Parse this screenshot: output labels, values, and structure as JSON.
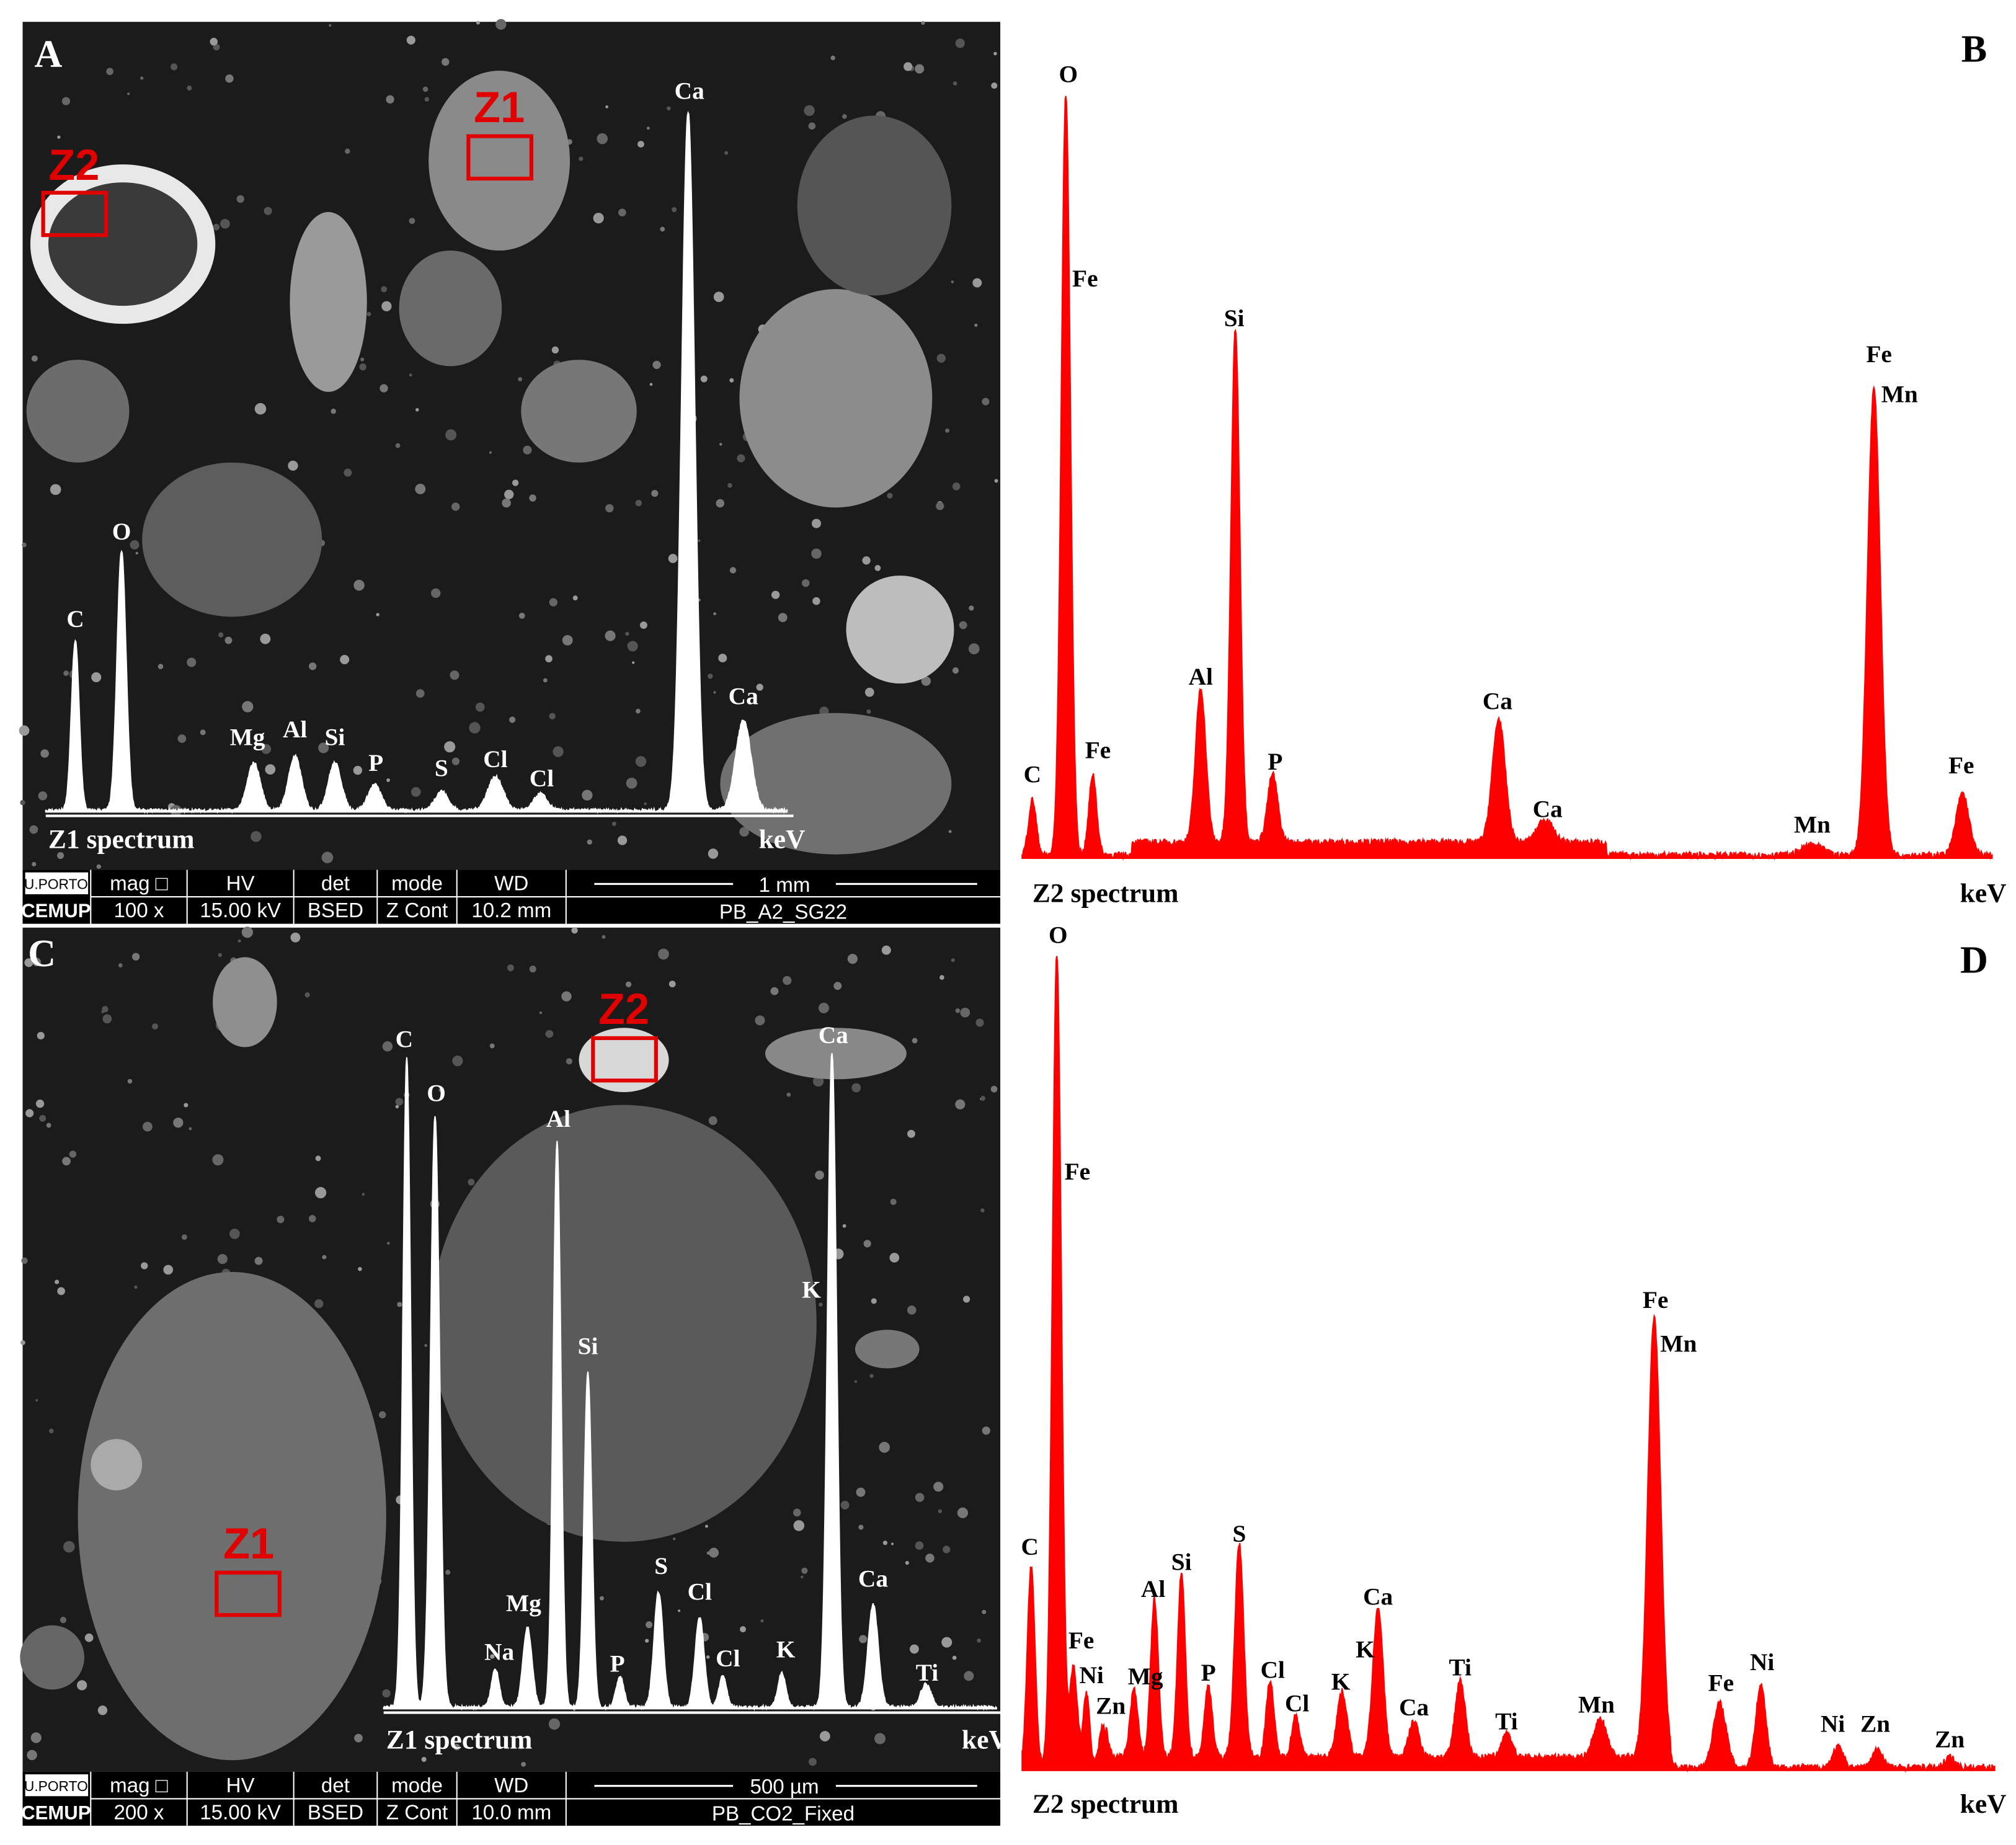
{
  "panels": [
    {
      "label": "A",
      "zones": [
        "Z1",
        "Z2"
      ],
      "spectrum": {
        "title": "Z1 spectrum",
        "unit": "keV",
        "peaks": [
          "C",
          "O",
          "Mg",
          "Al",
          "Si",
          "P",
          "S",
          "Cl",
          "Cl",
          "Ca",
          "Ca"
        ]
      },
      "info": {
        "logo_top": "U.PORTO",
        "logo_bottom": "CEMUP",
        "headers": [
          "mag □",
          "HV",
          "det",
          "mode",
          "WD"
        ],
        "values": [
          "100 x",
          "15.00 kV",
          "BSED",
          "Z Cont",
          "10.2 mm"
        ],
        "scale": "1 mm",
        "sample": "PB_A2_SG22"
      }
    },
    {
      "label": "B",
      "spectrum": {
        "title": "Z2 spectrum",
        "unit": "keV",
        "peaks": [
          "C",
          "O",
          "Fe",
          "Fe",
          "Al",
          "Si",
          "P",
          "Ca",
          "Ca",
          "Mn",
          "Fe",
          "Mn",
          "Fe"
        ]
      }
    },
    {
      "label": "C",
      "zones": [
        "Z1",
        "Z2"
      ],
      "spectrum": {
        "title": "Z1 spectrum",
        "unit": "keV",
        "peaks": [
          "C",
          "O",
          "Na",
          "Mg",
          "Al",
          "Si",
          "P",
          "S",
          "Cl",
          "Cl",
          "K",
          "K",
          "Ca",
          "Ca",
          "Ti"
        ]
      },
      "info": {
        "logo_top": "U.PORTO",
        "logo_bottom": "CEMUP",
        "headers": [
          "mag □",
          "HV",
          "det",
          "mode",
          "WD"
        ],
        "values": [
          "200 x",
          "15.00 kV",
          "BSED",
          "Z Cont",
          "10.0 mm"
        ],
        "scale": "500 µm",
        "sample": "PB_CO2_Fixed"
      }
    },
    {
      "label": "D",
      "spectrum": {
        "title": "Z2 spectrum",
        "unit": "keV",
        "peaks": [
          "C",
          "O",
          "Fe",
          "Fe",
          "Ni",
          "Zn",
          "Mg",
          "Al",
          "Si",
          "P",
          "S",
          "Cl",
          "Cl",
          "K",
          "K",
          "Ca",
          "Ca",
          "Ti",
          "Ti",
          "Mn",
          "Fe",
          "Mn",
          "Fe",
          "Ni",
          "Ni",
          "Zn",
          "Zn"
        ]
      }
    }
  ]
}
